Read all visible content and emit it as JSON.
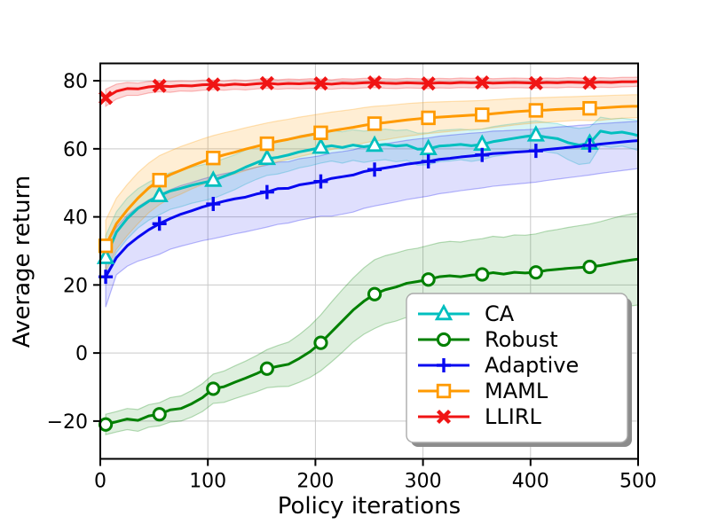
{
  "chart_data": {
    "type": "line",
    "title": "",
    "xlabel": "Policy iterations",
    "ylabel": "Average return",
    "xlim": [
      0,
      500
    ],
    "ylim": [
      -31.1,
      85.1
    ],
    "xticks": [
      0,
      100,
      200,
      300,
      400,
      500
    ],
    "yticks": [
      -20,
      0,
      20,
      40,
      60,
      80
    ],
    "grid": true,
    "grid_color": "#c9c9c9",
    "legend_position": "lower right",
    "marker_indices": [
      0,
      5,
      10,
      15,
      20,
      25,
      30,
      35,
      40,
      45
    ],
    "x": [
      5,
      15,
      25,
      35,
      45,
      55,
      65,
      75,
      85,
      95,
      105,
      115,
      125,
      135,
      145,
      155,
      165,
      175,
      185,
      195,
      205,
      215,
      225,
      235,
      245,
      255,
      265,
      275,
      285,
      295,
      305,
      315,
      325,
      335,
      345,
      355,
      365,
      375,
      385,
      395,
      405,
      415,
      425,
      435,
      445,
      455,
      465,
      475,
      485,
      495,
      500
    ],
    "series": [
      {
        "name": "CA",
        "color": "#00bfbf",
        "marker": "triangle-up",
        "band_alpha": 0.15,
        "values": [
          28.0,
          35.5,
          39.5,
          42.5,
          44.6,
          46.2,
          47.6,
          48.4,
          49.3,
          50.0,
          50.7,
          51.9,
          53.1,
          54.6,
          55.9,
          57.1,
          57.5,
          58.2,
          59.1,
          59.7,
          60.4,
          60.9,
          60.4,
          61.1,
          60.6,
          61.0,
          61.3,
          60.8,
          61.1,
          59.9,
          60.0,
          60.8,
          61.0,
          61.3,
          60.9,
          61.3,
          62.1,
          62.6,
          63.1,
          63.6,
          64.0,
          63.4,
          63.0,
          61.8,
          61.1,
          61.6,
          65.2,
          64.6,
          64.9,
          64.3,
          63.9
        ],
        "band_upper": [
          34.5,
          41.5,
          45.5,
          48.3,
          50.2,
          51.8,
          53.0,
          53.8,
          54.6,
          55.3,
          56.0,
          57.1,
          58.2,
          59.6,
          60.8,
          62.0,
          62.4,
          63.0,
          63.8,
          64.4,
          65.0,
          65.4,
          65.0,
          65.6,
          65.2,
          65.5,
          65.8,
          65.4,
          65.6,
          64.6,
          64.7,
          65.4,
          65.6,
          65.8,
          65.5,
          65.8,
          66.5,
          67.0,
          67.4,
          67.8,
          68.2,
          67.7,
          67.4,
          66.5,
          66.0,
          66.4,
          69.3,
          68.8,
          69.0,
          68.6,
          68.3
        ],
        "band_lower": [
          21.5,
          29.5,
          33.5,
          36.7,
          39.0,
          40.6,
          42.2,
          43.0,
          44.0,
          44.7,
          45.4,
          46.7,
          48.0,
          49.6,
          51.0,
          52.2,
          52.6,
          53.4,
          54.4,
          55.0,
          55.8,
          56.4,
          55.8,
          56.6,
          56.0,
          56.5,
          56.8,
          56.2,
          56.6,
          55.2,
          55.3,
          56.2,
          56.4,
          56.8,
          56.3,
          56.8,
          57.7,
          58.2,
          58.8,
          59.4,
          59.8,
          59.1,
          58.6,
          56.8,
          55.4,
          55.8,
          60.9,
          60.4,
          60.8,
          60.0,
          59.5
        ]
      },
      {
        "name": "Robust",
        "color": "#008000",
        "marker": "circle",
        "band_alpha": 0.13,
        "values": [
          -21.0,
          -20.2,
          -19.4,
          -19.8,
          -18.5,
          -18.0,
          -16.7,
          -16.3,
          -14.9,
          -13.1,
          -10.5,
          -9.9,
          -8.6,
          -7.4,
          -6.1,
          -4.6,
          -3.9,
          -3.3,
          -1.6,
          0.4,
          3.0,
          6.2,
          9.4,
          12.6,
          15.2,
          17.3,
          18.6,
          19.4,
          20.5,
          21.0,
          21.6,
          22.4,
          22.7,
          22.4,
          22.9,
          23.1,
          23.6,
          23.2,
          23.7,
          23.5,
          23.7,
          24.3,
          24.6,
          24.9,
          25.1,
          25.3,
          25.7,
          26.3,
          26.9,
          27.4,
          27.6
        ],
        "band_upper": [
          -18.0,
          -17.2,
          -16.3,
          -16.6,
          -15.2,
          -14.6,
          -13.1,
          -12.6,
          -11.0,
          -9.0,
          -6.2,
          -5.3,
          -3.8,
          -2.4,
          -0.8,
          1.0,
          2.2,
          3.2,
          5.4,
          8.0,
          11.2,
          15.0,
          18.6,
          22.0,
          25.0,
          27.4,
          28.6,
          29.4,
          30.3,
          30.8,
          31.6,
          32.4,
          32.8,
          32.6,
          33.2,
          33.6,
          34.3,
          34.0,
          34.7,
          34.6,
          35.0,
          35.8,
          36.3,
          36.9,
          37.4,
          37.9,
          38.6,
          39.5,
          40.3,
          40.9,
          41.1
        ],
        "band_lower": [
          -24.0,
          -23.2,
          -22.5,
          -23.0,
          -21.8,
          -21.4,
          -20.3,
          -20.0,
          -18.8,
          -17.2,
          -14.8,
          -14.5,
          -13.4,
          -12.4,
          -11.4,
          -10.2,
          -9.9,
          -9.8,
          -8.6,
          -7.2,
          -5.2,
          -2.6,
          0.2,
          3.2,
          5.5,
          7.2,
          8.6,
          9.4,
          10.5,
          11.0,
          11.6,
          12.4,
          12.7,
          12.2,
          12.6,
          12.6,
          13.0,
          12.4,
          12.7,
          12.4,
          12.4,
          12.8,
          12.9,
          13.0,
          12.9,
          12.7,
          12.8,
          13.1,
          13.5,
          13.9,
          14.1
        ]
      },
      {
        "name": "Adaptive",
        "color": "#0808f0",
        "marker": "plus",
        "band_alpha": 0.13,
        "values": [
          22.4,
          28.0,
          31.5,
          34.0,
          36.2,
          38.0,
          39.5,
          40.8,
          41.8,
          42.9,
          43.8,
          44.6,
          45.3,
          45.8,
          46.7,
          47.3,
          48.3,
          48.4,
          49.4,
          49.9,
          50.4,
          51.3,
          51.8,
          52.3,
          53.3,
          53.9,
          54.4,
          54.9,
          55.5,
          55.9,
          56.3,
          56.9,
          57.2,
          57.6,
          57.9,
          58.2,
          58.6,
          58.8,
          59.0,
          59.2,
          59.4,
          59.8,
          60.1,
          60.4,
          60.7,
          61.0,
          61.4,
          61.7,
          62.0,
          62.3,
          62.4
        ],
        "band_upper": [
          31.5,
          37.0,
          40.5,
          43.0,
          45.0,
          46.6,
          48.0,
          49.2,
          50.1,
          51.1,
          52.0,
          52.7,
          53.3,
          53.8,
          54.6,
          55.2,
          56.1,
          56.2,
          57.1,
          57.5,
          58.0,
          58.8,
          59.2,
          59.7,
          60.6,
          61.1,
          61.5,
          62.0,
          62.5,
          62.9,
          63.2,
          63.7,
          64.0,
          64.3,
          64.6,
          64.8,
          65.2,
          65.3,
          65.5,
          65.6,
          65.8,
          66.1,
          66.4,
          66.6,
          66.9,
          67.1,
          67.4,
          67.6,
          67.8,
          68.0,
          68.1
        ],
        "band_lower": [
          13.5,
          23.0,
          25.5,
          27.0,
          28.0,
          29.0,
          30.5,
          31.4,
          32.2,
          33.0,
          33.6,
          34.3,
          35.0,
          35.6,
          36.3,
          37.0,
          37.8,
          38.2,
          39.0,
          39.6,
          40.2,
          40.2,
          40.8,
          41.4,
          42.5,
          43.2,
          43.8,
          44.4,
          45.1,
          45.6,
          46.1,
          46.8,
          47.2,
          47.7,
          48.1,
          48.5,
          49.0,
          49.3,
          49.6,
          49.9,
          50.2,
          50.7,
          51.1,
          51.5,
          51.9,
          52.3,
          52.8,
          53.2,
          53.6,
          54.0,
          54.2
        ]
      },
      {
        "name": "MAML",
        "color": "#ff9a00",
        "marker": "square",
        "band_alpha": 0.17,
        "values": [
          31.5,
          38.0,
          42.0,
          45.5,
          48.5,
          50.8,
          52.4,
          53.7,
          55.0,
          56.2,
          57.3,
          58.2,
          59.0,
          59.9,
          60.7,
          61.5,
          62.2,
          62.8,
          63.5,
          64.1,
          64.7,
          65.3,
          65.8,
          66.3,
          66.9,
          67.4,
          67.7,
          68.1,
          68.5,
          68.8,
          69.1,
          69.3,
          69.5,
          69.7,
          69.9,
          70.0,
          70.3,
          70.6,
          70.9,
          71.1,
          71.3,
          71.4,
          71.6,
          71.7,
          71.8,
          71.9,
          72.0,
          72.2,
          72.4,
          72.5,
          72.5
        ],
        "band_upper": [
          39.0,
          45.5,
          49.5,
          53.0,
          55.8,
          58.0,
          59.4,
          60.7,
          61.8,
          62.9,
          63.9,
          64.7,
          65.4,
          66.2,
          66.9,
          67.6,
          68.2,
          68.7,
          69.3,
          69.8,
          70.3,
          70.8,
          71.2,
          71.6,
          72.1,
          72.5,
          72.7,
          73.0,
          73.3,
          73.5,
          73.7,
          73.8,
          73.9,
          74.0,
          74.1,
          74.2,
          74.4,
          74.6,
          74.8,
          74.9,
          75.0,
          75.1,
          75.2,
          75.3,
          75.4,
          75.5,
          75.6,
          75.7,
          75.8,
          75.9,
          75.9
        ],
        "band_lower": [
          24.0,
          30.5,
          34.5,
          38.0,
          41.2,
          43.6,
          45.4,
          46.7,
          48.2,
          49.5,
          50.7,
          51.7,
          52.6,
          53.6,
          54.5,
          55.4,
          56.2,
          56.9,
          57.7,
          58.4,
          59.1,
          59.8,
          60.4,
          61.0,
          61.7,
          62.3,
          62.7,
          63.2,
          63.7,
          64.1,
          64.5,
          64.8,
          65.1,
          65.4,
          65.7,
          65.8,
          66.2,
          66.6,
          67.0,
          67.3,
          67.6,
          67.8,
          68.0,
          68.2,
          68.4,
          68.3,
          68.4,
          68.7,
          69.0,
          69.1,
          69.1
        ]
      },
      {
        "name": "LLIRL",
        "color": "#f01414",
        "marker": "x",
        "band_alpha": 0.16,
        "values": [
          75.0,
          76.9,
          77.7,
          77.6,
          78.2,
          78.5,
          78.3,
          78.6,
          78.5,
          78.8,
          78.9,
          78.7,
          79.0,
          78.8,
          79.1,
          79.3,
          79.0,
          79.2,
          79.1,
          79.3,
          79.2,
          79.0,
          79.3,
          79.2,
          79.4,
          79.5,
          79.3,
          79.2,
          79.4,
          79.3,
          79.2,
          79.4,
          79.3,
          79.5,
          79.4,
          79.5,
          79.3,
          79.4,
          79.5,
          79.4,
          79.3,
          79.5,
          79.4,
          79.6,
          79.5,
          79.4,
          79.6,
          79.5,
          79.7,
          79.7,
          79.8
        ],
        "band_upper": [
          77.5,
          79.0,
          79.5,
          79.3,
          79.8,
          80.0,
          79.8,
          80.0,
          79.9,
          80.2,
          80.2,
          80.0,
          80.3,
          80.1,
          80.4,
          80.6,
          80.3,
          80.5,
          80.4,
          80.6,
          80.5,
          80.3,
          80.6,
          80.5,
          80.7,
          80.8,
          80.6,
          80.5,
          80.7,
          80.6,
          80.5,
          80.7,
          80.6,
          80.8,
          80.7,
          80.8,
          80.6,
          80.7,
          80.8,
          80.7,
          80.6,
          80.8,
          80.7,
          80.9,
          80.8,
          80.7,
          80.9,
          80.8,
          81.0,
          81.0,
          81.1
        ],
        "band_lower": [
          72.5,
          74.6,
          75.7,
          75.7,
          76.4,
          76.8,
          76.6,
          77.0,
          76.9,
          77.2,
          77.4,
          77.2,
          77.5,
          77.3,
          77.6,
          77.8,
          77.5,
          77.7,
          77.6,
          77.8,
          77.7,
          77.5,
          77.8,
          77.7,
          77.9,
          78.0,
          77.8,
          77.7,
          77.9,
          77.8,
          77.7,
          77.9,
          77.8,
          78.0,
          77.9,
          78.0,
          77.8,
          77.9,
          78.0,
          77.9,
          77.8,
          78.0,
          77.9,
          78.1,
          78.0,
          77.9,
          78.1,
          78.0,
          78.2,
          78.3,
          78.4
        ]
      }
    ],
    "legend": {
      "entries": [
        "CA",
        "Robust",
        "Adaptive",
        "MAML",
        "LLIRL"
      ],
      "border_color": "#aaaaaa",
      "shadow_color": "#8c8c8c",
      "background": "#ffffff"
    }
  }
}
